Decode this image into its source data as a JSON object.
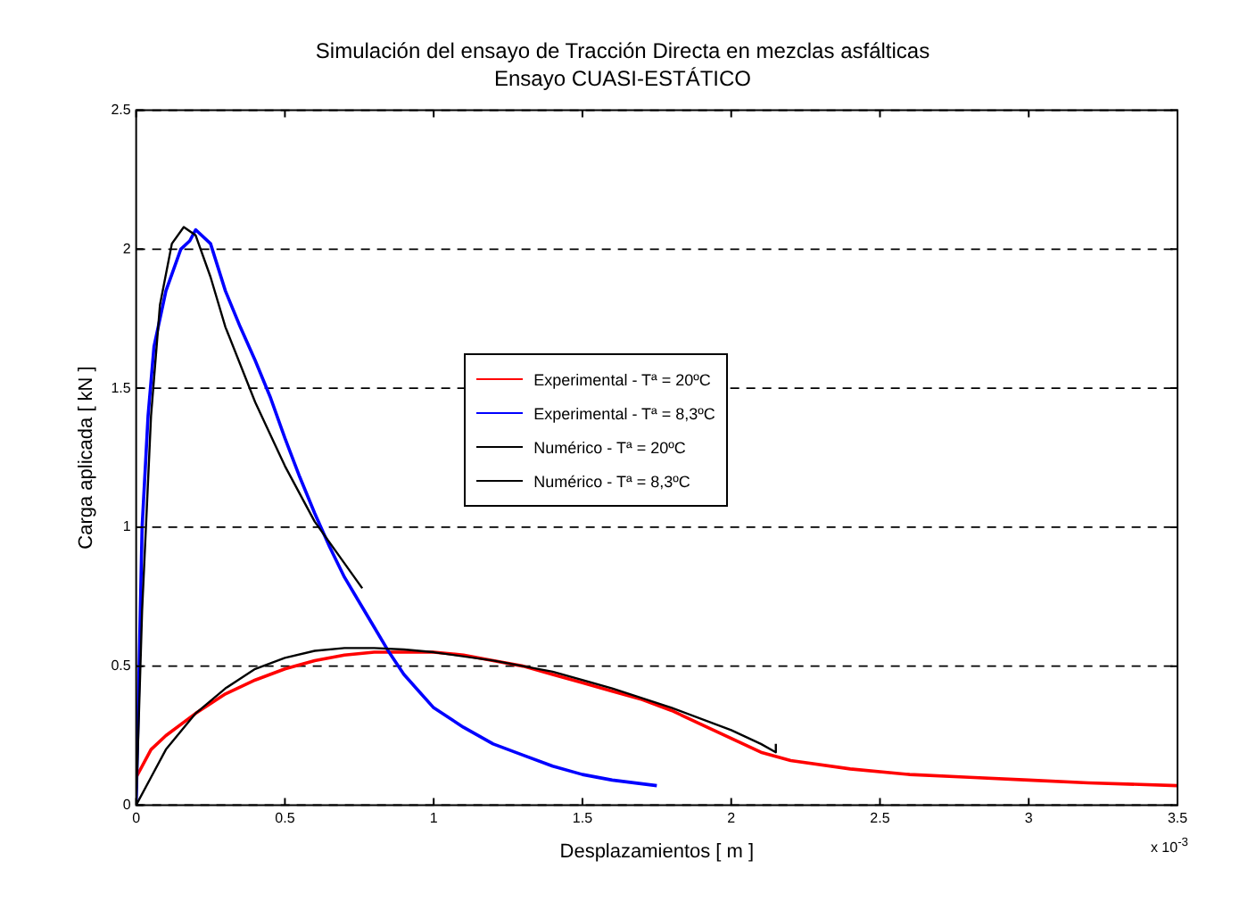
{
  "chart_data": {
    "type": "line",
    "title": "Simulación del ensayo de Tracción Directa en mezclas asfálticas",
    "subtitle": "Ensayo CUASI-ESTÁTICO",
    "xlabel": "Desplazamientos [ m ]",
    "ylabel": "Carga aplicada [ kN ]",
    "annotations": [
      "x 10$^{-3}$"
    ],
    "xlim": [
      0,
      3.5
    ],
    "xticks": [
      0,
      0.5,
      1,
      1.5,
      2,
      2.5,
      3,
      3.5
    ],
    "ylim": [
      0,
      2.5
    ],
    "yticks": [
      0,
      0.5,
      1,
      1.5,
      2,
      2.5
    ],
    "grid": "y",
    "legend": "center",
    "marker": "none",
    "line_style": "solid",
    "series": [
      {
        "name": "Experimental - Tª = 20ºC",
        "color": "#ff0000",
        "x": [
          0,
          0.05,
          0.1,
          0.2,
          0.3,
          0.4,
          0.5,
          0.6,
          0.7,
          0.8,
          0.9,
          1.0,
          1.1,
          1.2,
          1.3,
          1.4,
          1.5,
          1.6,
          1.7,
          1.8,
          1.9,
          2.0,
          2.1,
          2.2,
          2.4,
          2.6,
          2.8,
          3.0,
          3.2,
          3.5
        ],
        "values": [
          0.1,
          0.2,
          0.25,
          0.33,
          0.4,
          0.45,
          0.49,
          0.52,
          0.54,
          0.55,
          0.55,
          0.55,
          0.54,
          0.52,
          0.5,
          0.47,
          0.44,
          0.41,
          0.38,
          0.34,
          0.29,
          0.24,
          0.19,
          0.16,
          0.13,
          0.11,
          0.1,
          0.09,
          0.08,
          0.07
        ]
      },
      {
        "name": "Experimental - Tª = 8,3ºC",
        "color": "#0000ff",
        "x": [
          0,
          0.01,
          0.02,
          0.04,
          0.06,
          0.1,
          0.15,
          0.18,
          0.2,
          0.25,
          0.3,
          0.35,
          0.4,
          0.45,
          0.5,
          0.55,
          0.6,
          0.65,
          0.7,
          0.75,
          0.8,
          0.85,
          0.9,
          0.95,
          1.0,
          1.1,
          1.2,
          1.3,
          1.4,
          1.5,
          1.6,
          1.75
        ],
        "values": [
          0,
          0.5,
          1.0,
          1.4,
          1.65,
          1.85,
          2.0,
          2.03,
          2.07,
          2.02,
          1.85,
          1.72,
          1.6,
          1.47,
          1.32,
          1.18,
          1.05,
          0.93,
          0.82,
          0.73,
          0.64,
          0.55,
          0.47,
          0.41,
          0.35,
          0.28,
          0.22,
          0.18,
          0.14,
          0.11,
          0.09,
          0.07
        ]
      },
      {
        "name": "Numérico - Tª = 20ºC",
        "color": "#000000",
        "x": [
          0,
          0.05,
          0.1,
          0.2,
          0.3,
          0.4,
          0.5,
          0.6,
          0.7,
          0.8,
          0.9,
          1.0,
          1.2,
          1.4,
          1.6,
          1.8,
          2.0,
          2.1,
          2.15,
          2.15
        ],
        "values": [
          0,
          0.1,
          0.2,
          0.33,
          0.42,
          0.49,
          0.53,
          0.555,
          0.565,
          0.565,
          0.56,
          0.55,
          0.52,
          0.48,
          0.42,
          0.35,
          0.27,
          0.22,
          0.19,
          0.22
        ]
      },
      {
        "name": "Numérico - Tª = 8,3ºC",
        "color": "#000000",
        "x": [
          0,
          0.02,
          0.05,
          0.08,
          0.12,
          0.16,
          0.2,
          0.25,
          0.3,
          0.4,
          0.5,
          0.6,
          0.7,
          0.76
        ],
        "values": [
          0,
          0.7,
          1.4,
          1.8,
          2.02,
          2.08,
          2.05,
          1.9,
          1.72,
          1.45,
          1.22,
          1.02,
          0.87,
          0.78
        ]
      }
    ]
  }
}
